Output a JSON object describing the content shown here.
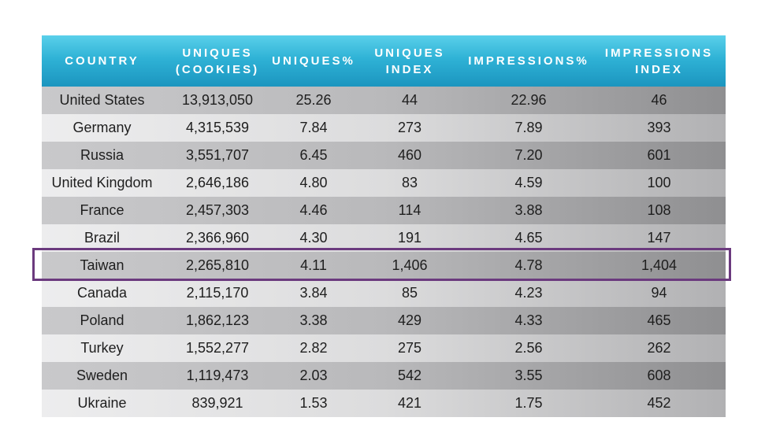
{
  "chart_data": {
    "type": "table",
    "columns": [
      "COUNTRY",
      "UNIQUES\n(COOKIES)",
      "UNIQUES%",
      "UNIQUES\nINDEX",
      "IMPRESSIONS%",
      "IMPRESSIONS\nINDEX"
    ],
    "rows": [
      [
        "United States",
        "13,913,050",
        "25.26",
        "44",
        "22.96",
        "46"
      ],
      [
        "Germany",
        "4,315,539",
        "7.84",
        "273",
        "7.89",
        "393"
      ],
      [
        "Russia",
        "3,551,707",
        "6.45",
        "460",
        "7.20",
        "601"
      ],
      [
        "United Kingdom",
        "2,646,186",
        "4.80",
        "83",
        "4.59",
        "100"
      ],
      [
        "France",
        "2,457,303",
        "4.46",
        "114",
        "3.88",
        "108"
      ],
      [
        "Brazil",
        "2,366,960",
        "4.30",
        "191",
        "4.65",
        "147"
      ],
      [
        "Taiwan",
        "2,265,810",
        "4.11",
        "1,406",
        "4.78",
        "1,404"
      ],
      [
        "Canada",
        "2,115,170",
        "3.84",
        "85",
        "4.23",
        "94"
      ],
      [
        "Poland",
        "1,862,123",
        "3.38",
        "429",
        "4.33",
        "465"
      ],
      [
        "Turkey",
        "1,552,277",
        "2.82",
        "275",
        "2.56",
        "262"
      ],
      [
        "Sweden",
        "1,119,473",
        "2.03",
        "542",
        "3.55",
        "608"
      ],
      [
        "Ukraine",
        "839,921",
        "1.53",
        "421",
        "1.75",
        "452"
      ]
    ],
    "highlighted_row": "Taiwan"
  },
  "colors": {
    "header_bg": "#2fb2d6",
    "header_text": "#ffffff",
    "row_dark": "#b9b9bb",
    "row_light": "#dcdcdd",
    "highlight_border": "#6b3a7e"
  }
}
